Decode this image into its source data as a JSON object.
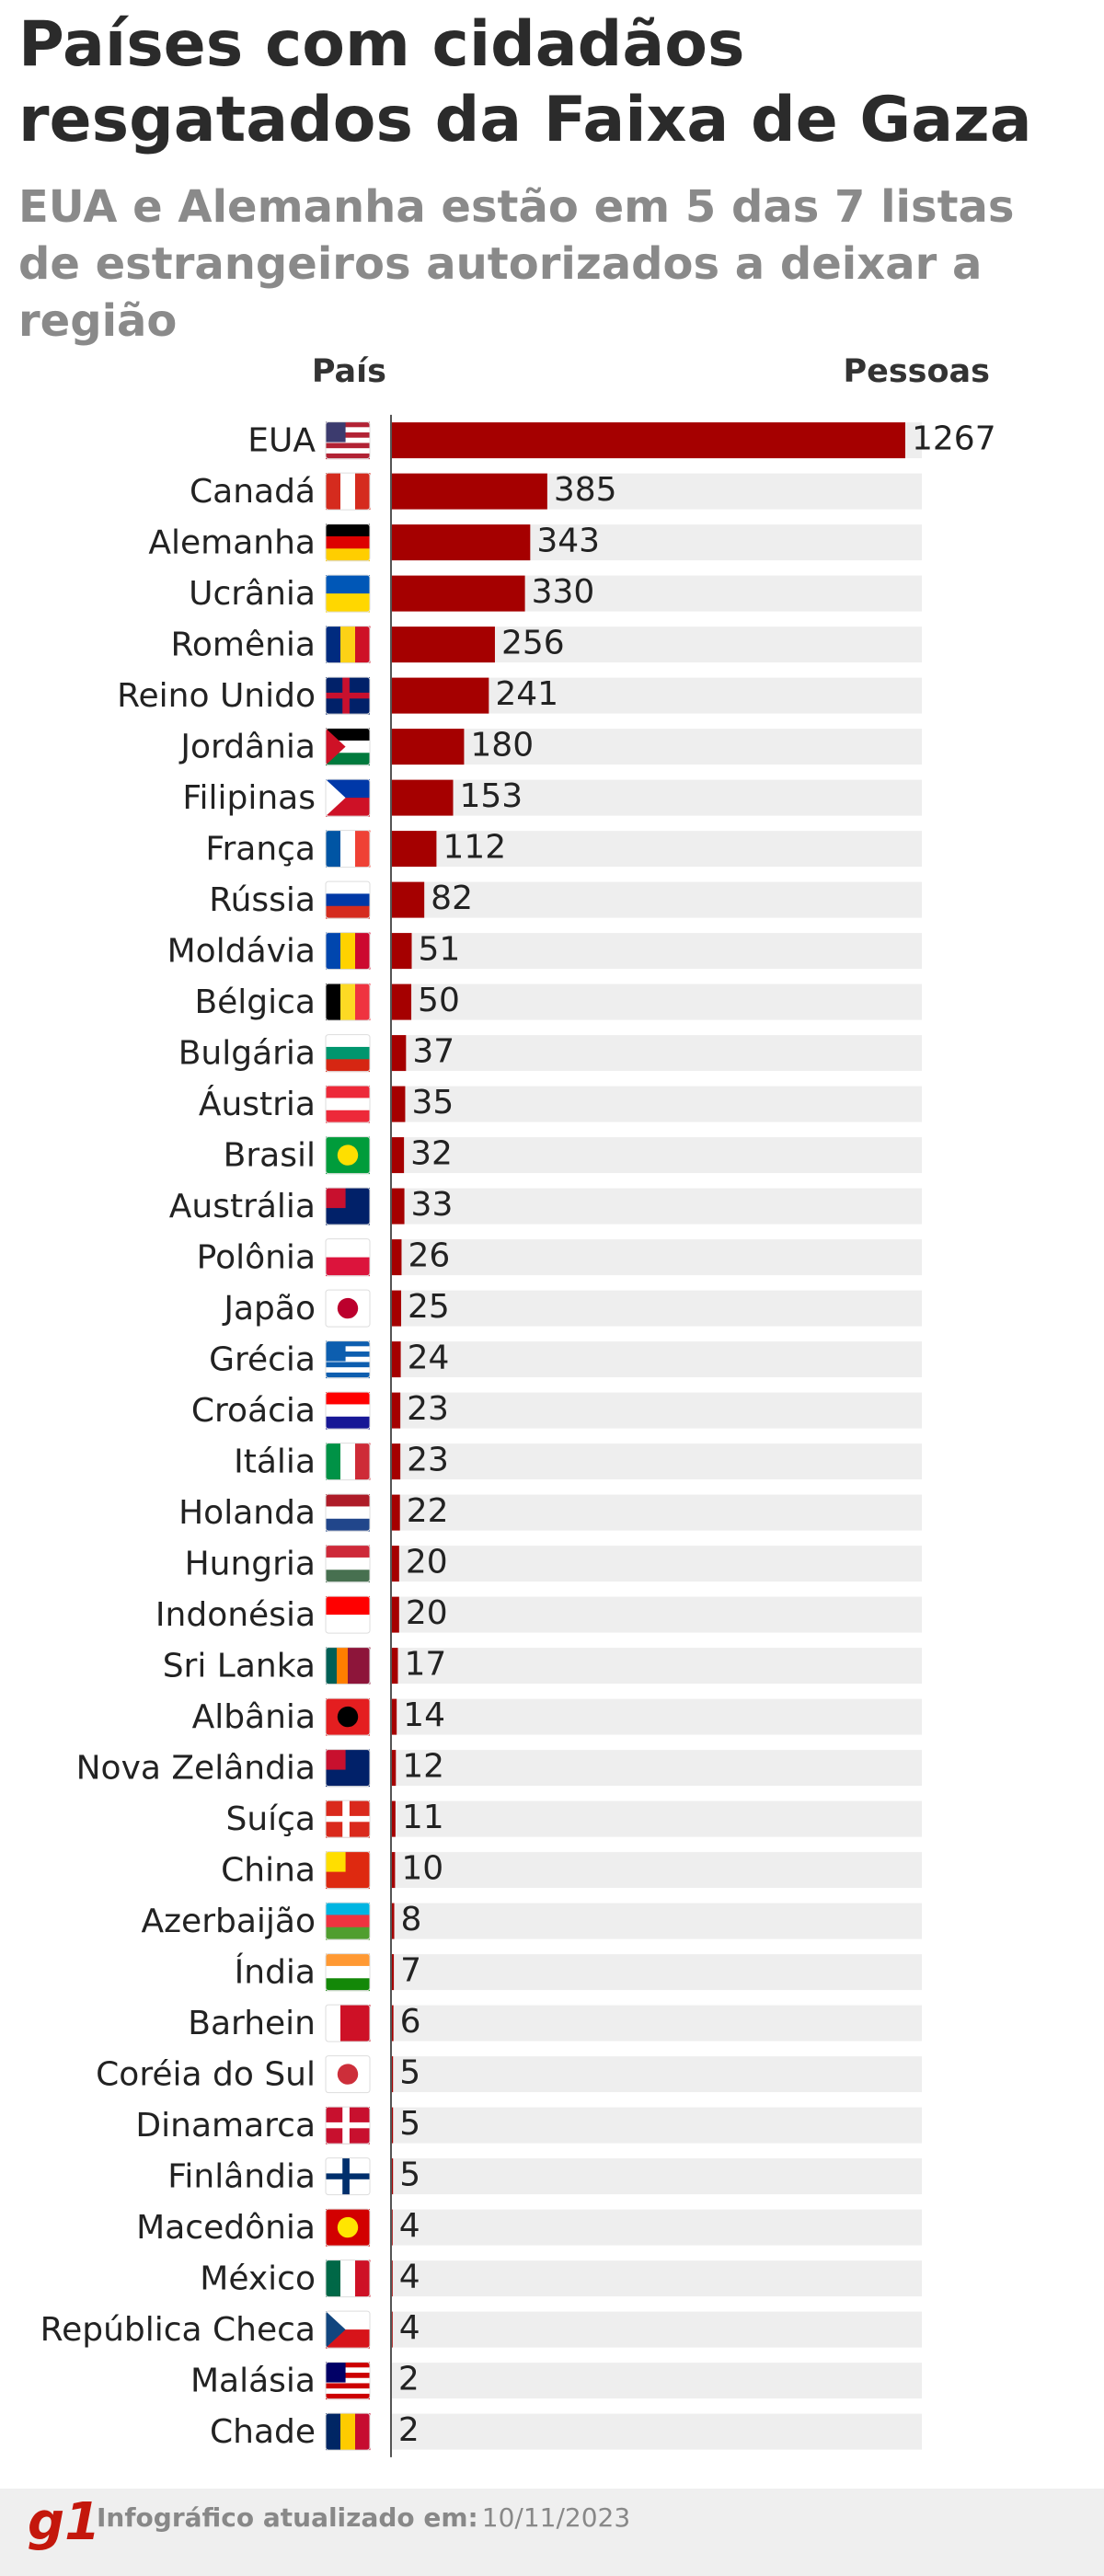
{
  "chart_data": {
    "type": "bar",
    "title": "Países com cidadãos resgatados da Faixa de Gaza",
    "subtitle": "EUA e Alemanha estão em 5 das 7 listas de estrangeiros autorizados a deixar a região",
    "category_header": "País",
    "value_header": "Pessoas",
    "categories": [
      "EUA",
      "Canadá",
      "Alemanha",
      "Ucrânia",
      "Romênia",
      "Reino Unido",
      "Jordânia",
      "Filipinas",
      "França",
      "Rússia",
      "Moldávia",
      "Bélgica",
      "Bulgária",
      "Áustria",
      "Brasil",
      "Austrália",
      "Polônia",
      "Japão",
      "Grécia",
      "Croácia",
      "Itália",
      "Holanda",
      "Hungria",
      "Indonésia",
      "Sri Lanka",
      "Albânia",
      "Nova Zelândia",
      "Suíça",
      "China",
      "Azerbaijão",
      "Índia",
      "Barhein",
      "Coréia do Sul",
      "Dinamarca",
      "Finlândia",
      "Macedônia",
      "México",
      "República Checa",
      "Malásia",
      "Chade"
    ],
    "values": [
      1267,
      385,
      343,
      330,
      256,
      241,
      180,
      153,
      112,
      82,
      51,
      50,
      37,
      35,
      32,
      33,
      26,
      25,
      24,
      23,
      23,
      22,
      20,
      20,
      17,
      14,
      12,
      11,
      10,
      8,
      7,
      6,
      5,
      5,
      5,
      4,
      4,
      4,
      2,
      2
    ],
    "color": "#a50000",
    "footer": {
      "logo": "g1",
      "label": "Infográfico atualizado em:",
      "date": "10/11/2023"
    }
  }
}
